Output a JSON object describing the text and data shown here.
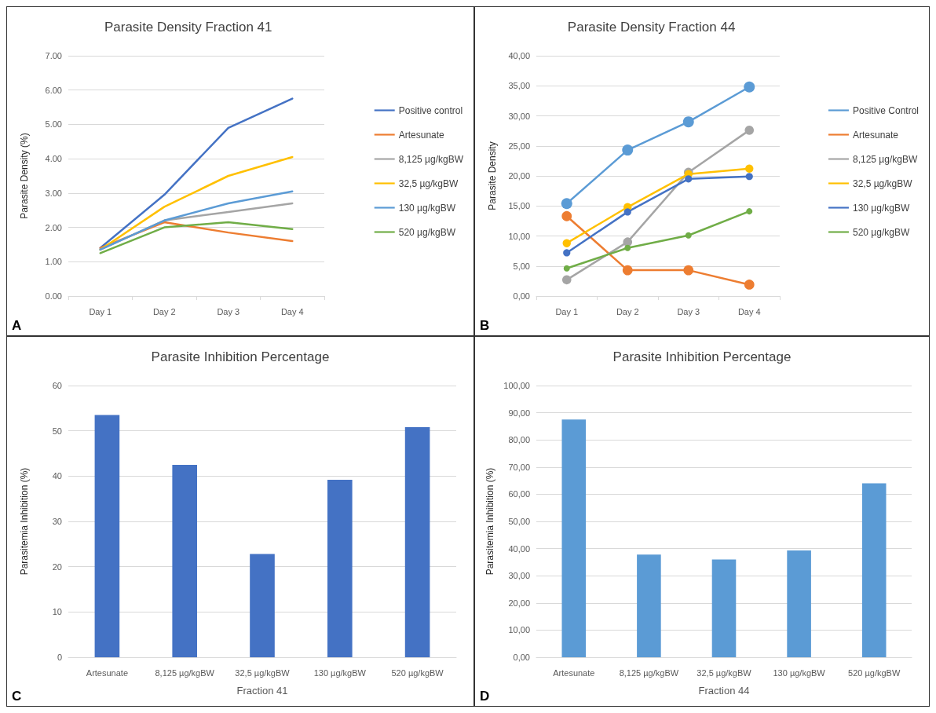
{
  "chart_data": [
    {
      "type": "line",
      "title": "Parasite Density Fraction 41",
      "ylabel": "Parasite Density (%)",
      "categories": [
        "Day 1",
        "Day 2",
        "Day 3",
        "Day 4"
      ],
      "ylim": [
        0,
        7
      ],
      "yticks": [
        {
          "value": 0,
          "label": "0.00"
        },
        {
          "value": 1,
          "label": "1.00"
        },
        {
          "value": 2,
          "label": "2.00"
        },
        {
          "value": 3,
          "label": "3.00"
        },
        {
          "value": 4,
          "label": "4.00"
        },
        {
          "value": 5,
          "label": "5.00"
        },
        {
          "value": 6,
          "label": "6.00"
        },
        {
          "value": 7,
          "label": "7.00"
        }
      ],
      "grid": "y",
      "legend": "right",
      "marker": "none",
      "line_style": "solid",
      "annotations": [
        "A"
      ],
      "series": [
        {
          "name": "Positive control",
          "color": "#4472c4",
          "values": [
            1.4,
            2.95,
            4.9,
            5.75
          ]
        },
        {
          "name": "Artesunate",
          "color": "#ed7d31",
          "values": [
            1.4,
            2.15,
            1.85,
            1.6
          ]
        },
        {
          "name": "8,125 µg/kgBW",
          "color": "#a5a5a5",
          "values": [
            1.35,
            2.2,
            2.45,
            2.7
          ]
        },
        {
          "name": "32,5 µg/kgBW",
          "color": "#ffc000",
          "values": [
            1.35,
            2.6,
            3.5,
            4.05
          ]
        },
        {
          "name": "130 µg/kgBW",
          "color": "#5b9bd5",
          "values": [
            1.35,
            2.2,
            2.7,
            3.05
          ]
        },
        {
          "name": "520 µg/kgBW",
          "color": "#70ad47",
          "values": [
            1.25,
            2.0,
            2.15,
            1.95
          ]
        }
      ]
    },
    {
      "type": "line",
      "title": "Parasite Density Fraction 44",
      "ylabel": "Parasite Density",
      "categories": [
        "Day 1",
        "Day 2",
        "Day 3",
        "Day 4"
      ],
      "ylim": [
        0,
        40
      ],
      "yticks": [
        {
          "value": 0,
          "label": "0,00"
        },
        {
          "value": 5,
          "label": "5,00"
        },
        {
          "value": 10,
          "label": "10,00"
        },
        {
          "value": 15,
          "label": "15,00"
        },
        {
          "value": 20,
          "label": "20,00"
        },
        {
          "value": 25,
          "label": "25,00"
        },
        {
          "value": 30,
          "label": "30,00"
        },
        {
          "value": 35,
          "label": "35,00"
        },
        {
          "value": 40,
          "label": "40,00"
        }
      ],
      "grid": "y",
      "legend": "right",
      "marker": "circle",
      "line_style": "solid",
      "annotations": [
        "B"
      ],
      "series": [
        {
          "name": "Positive Control",
          "color": "#5b9bd5",
          "values": [
            15.4,
            24.3,
            29.0,
            34.8
          ]
        },
        {
          "name": "Artesunate",
          "color": "#ed7d31",
          "values": [
            13.3,
            4.3,
            4.3,
            1.9
          ]
        },
        {
          "name": "8,125 µg/kgBW",
          "color": "#a5a5a5",
          "values": [
            2.7,
            9.0,
            20.6,
            27.6
          ]
        },
        {
          "name": "32,5 µg/kgBW",
          "color": "#ffc000",
          "values": [
            8.8,
            14.8,
            20.3,
            21.2
          ]
        },
        {
          "name": "130 µg/kgBW",
          "color": "#4472c4",
          "values": [
            7.2,
            14.0,
            19.5,
            19.9
          ]
        },
        {
          "name": "520 µg/kgBW",
          "color": "#70ad47",
          "values": [
            4.6,
            8.0,
            10.1,
            14.1
          ]
        }
      ]
    },
    {
      "type": "bar",
      "title": "Parasite Inhibition Percentage",
      "xlabel": "Fraction 41",
      "ylabel": "Parasitemia Inhibition (%)",
      "categories": [
        "Artesunate",
        "8,125 µg/kgBW",
        "32,5 µg/kgBW",
        "130 µg/kgBW",
        "520 µg/kgBW"
      ],
      "values": [
        53.5,
        42.5,
        22.8,
        39.2,
        50.8
      ],
      "color": "#4472c4",
      "ylim": [
        0,
        60
      ],
      "yticks": [
        0,
        10,
        20,
        30,
        40,
        50,
        60
      ],
      "grid": "y",
      "annotations": [
        "C"
      ]
    },
    {
      "type": "bar",
      "title": "Parasite Inhibition Percentage",
      "xlabel": "Fraction 44",
      "ylabel": "Parasitemia Inhibition (%)",
      "categories": [
        "Artesunate",
        "8,125 µg/kgBW",
        "32,5 µg/kgBW",
        "130 µg/kgBW",
        "520 µg/kgBW"
      ],
      "values": [
        87.5,
        37.8,
        36.0,
        39.3,
        64.0
      ],
      "color": "#5b9bd5",
      "ylim": [
        0,
        100
      ],
      "yticks": [
        {
          "value": 0,
          "label": "0,00"
        },
        {
          "value": 10,
          "label": "10,00"
        },
        {
          "value": 20,
          "label": "20,00"
        },
        {
          "value": 30,
          "label": "30,00"
        },
        {
          "value": 40,
          "label": "40,00"
        },
        {
          "value": 50,
          "label": "50,00"
        },
        {
          "value": 60,
          "label": "60,00"
        },
        {
          "value": 70,
          "label": "70,00"
        },
        {
          "value": 80,
          "label": "80,00"
        },
        {
          "value": 90,
          "label": "90,00"
        },
        {
          "value": 100,
          "label": "100,00"
        }
      ],
      "grid": "y",
      "annotations": [
        "D"
      ]
    }
  ]
}
